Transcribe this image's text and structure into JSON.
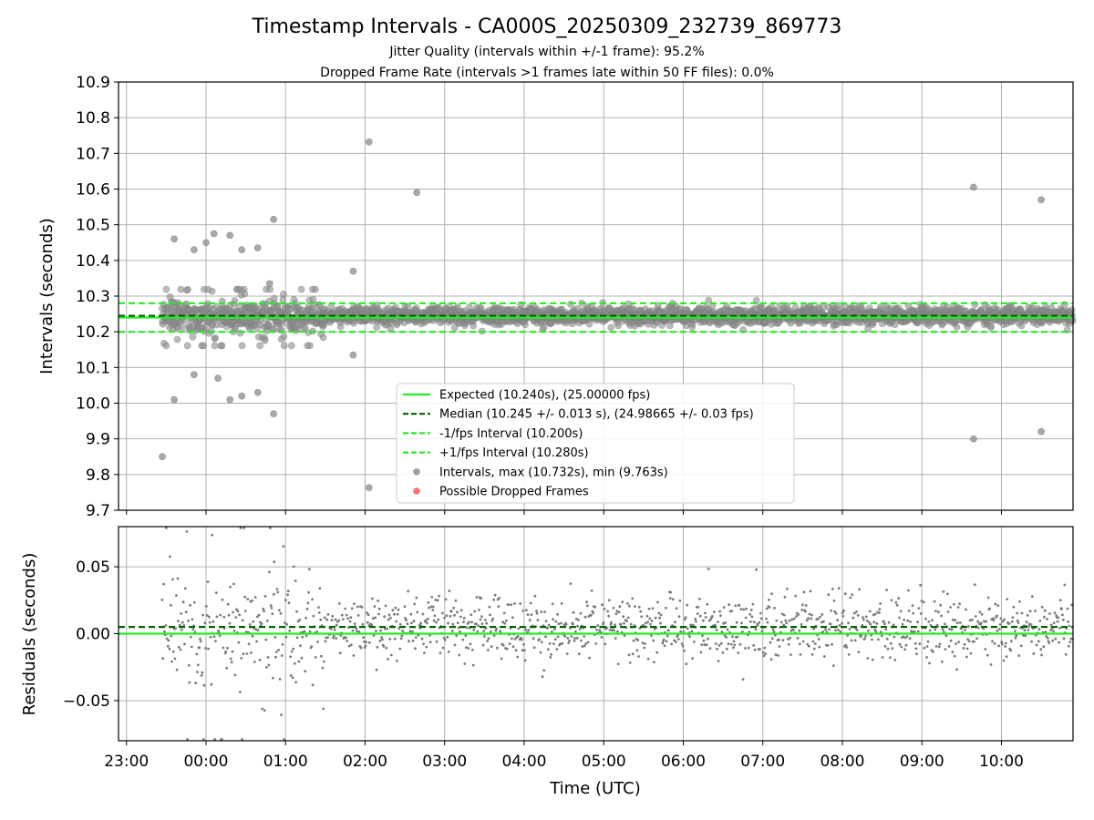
{
  "title": "Timestamp Intervals - CA000S_20250309_232739_869773",
  "subtitle_1": "Jitter Quality (intervals within +/-1 frame): 95.2%",
  "subtitle_2": "Dropped Frame Rate (intervals >1 frames late within 50 FF files): 0.0%",
  "colors": {
    "expected": "#22ee22",
    "median": "#006400",
    "interval_bound": "#22ee22",
    "points": "#8c8c8c",
    "residual_points": "#7a7a7a",
    "dropped": "#ff5555",
    "grid": "#b0b0b0"
  },
  "chart_data": [
    {
      "type": "scatter",
      "ylabel": "Intervals (seconds)",
      "ylim": [
        9.7,
        10.9
      ],
      "yticks": [
        "9.7",
        "9.8",
        "9.9",
        "10.0",
        "10.1",
        "10.2",
        "10.3",
        "10.4",
        "10.5",
        "10.6",
        "10.7",
        "10.8",
        "10.9"
      ],
      "xlim_hours": [
        -1.1,
        10.9
      ],
      "grid": true,
      "legend_position": "lower center",
      "lines": {
        "expected": 10.24,
        "median": 10.245,
        "minus_one_frame": 10.2,
        "plus_one_frame": 10.28
      },
      "legend": [
        {
          "label": "Expected (10.240s), (25.00000 fps)",
          "kind": "solid",
          "color_key": "expected"
        },
        {
          "label": "Median (10.245 +/- 0.013 s), (24.98665 +/- 0.03 fps)",
          "kind": "dashed",
          "color_key": "median"
        },
        {
          "label": "-1/fps Interval (10.200s)",
          "kind": "dashed",
          "color_key": "interval_bound"
        },
        {
          "label": "+1/fps Interval (10.280s)",
          "kind": "dashed",
          "color_key": "interval_bound"
        },
        {
          "label": "Intervals, max (10.732s), min (9.763s)",
          "kind": "dot",
          "color_key": "points"
        },
        {
          "label": "Possible Dropped Frames",
          "kind": "dot",
          "color_key": "dropped"
        }
      ],
      "outliers": [
        {
          "t": -0.55,
          "v": 9.85
        },
        {
          "t": -0.4,
          "v": 10.46
        },
        {
          "t": -0.4,
          "v": 10.01
        },
        {
          "t": -0.15,
          "v": 10.43
        },
        {
          "t": -0.15,
          "v": 10.08
        },
        {
          "t": 0.0,
          "v": 10.45
        },
        {
          "t": 0.1,
          "v": 10.475
        },
        {
          "t": 0.15,
          "v": 10.07
        },
        {
          "t": 0.3,
          "v": 10.47
        },
        {
          "t": 0.3,
          "v": 10.01
        },
        {
          "t": 0.45,
          "v": 10.02
        },
        {
          "t": 0.45,
          "v": 10.43
        },
        {
          "t": 0.65,
          "v": 10.03
        },
        {
          "t": 0.65,
          "v": 10.435
        },
        {
          "t": 0.8,
          "v": 10.335
        },
        {
          "t": 0.85,
          "v": 10.515
        },
        {
          "t": 0.85,
          "v": 9.97
        },
        {
          "t": 1.85,
          "v": 10.37
        },
        {
          "t": 1.85,
          "v": 10.135
        },
        {
          "t": 2.05,
          "v": 10.732
        },
        {
          "t": 2.05,
          "v": 9.763
        },
        {
          "t": 2.65,
          "v": 10.59
        },
        {
          "t": 9.65,
          "v": 10.605
        },
        {
          "t": 9.65,
          "v": 9.9
        },
        {
          "t": 10.5,
          "v": 10.57
        },
        {
          "t": 10.5,
          "v": 9.92
        }
      ]
    },
    {
      "type": "scatter",
      "xlabel": "Time (UTC)",
      "ylabel": "Residuals (seconds)",
      "ylim": [
        -0.08,
        0.08
      ],
      "yticks": [
        "−0.05",
        "0.00",
        "0.05"
      ],
      "xticks": [
        "23:00",
        "00:00",
        "01:00",
        "02:00",
        "03:00",
        "04:00",
        "05:00",
        "06:00",
        "07:00",
        "08:00",
        "09:00",
        "10:00"
      ],
      "grid": true,
      "lines": {
        "zero": 0.0,
        "median_offset": 0.005
      }
    }
  ]
}
